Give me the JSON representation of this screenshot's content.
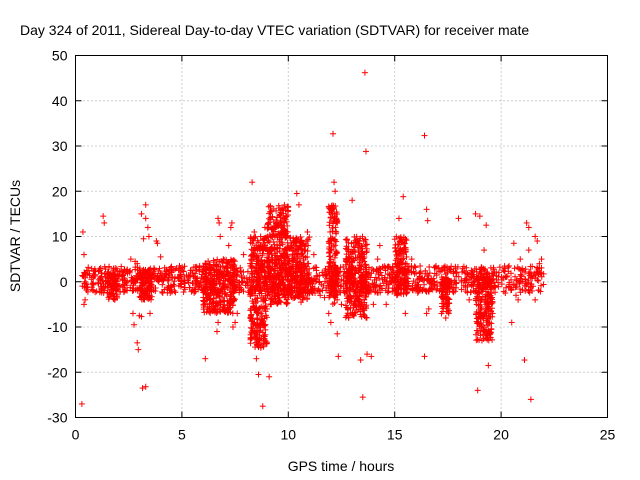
{
  "chart_data": {
    "type": "scatter",
    "title": "Day 324 of 2011, Sidereal Day-to-day VTEC variation (SDTVAR) for receiver mate",
    "xlabel": "GPS time / hours",
    "ylabel": "SDTVAR / TECUs",
    "xlim": [
      0,
      25
    ],
    "ylim": [
      -30,
      50
    ],
    "xticks": [
      0,
      5,
      10,
      15,
      20,
      25
    ],
    "yticks": [
      -30,
      -20,
      -10,
      0,
      10,
      20,
      30,
      40,
      50
    ],
    "grid": true,
    "marker": "plus",
    "color": "#ff0000",
    "series": [
      {
        "name": "SDTVAR",
        "band": {
          "x_start": 0.3,
          "x_end": 22.0,
          "y_low": -2.5,
          "y_high": 3.5
        },
        "bursts": [
          {
            "x_start": 1.5,
            "x_end": 2.0,
            "y_min": -4,
            "y_max": 2
          },
          {
            "x_start": 3.0,
            "x_end": 3.6,
            "y_min": -4,
            "y_max": 3
          },
          {
            "x_start": 6.0,
            "x_end": 7.5,
            "y_min": -7,
            "y_max": 5
          },
          {
            "x_start": 8.2,
            "x_end": 9.0,
            "y_min": -15,
            "y_max": 10
          },
          {
            "x_start": 9.0,
            "x_end": 10.0,
            "y_min": -5,
            "y_max": 17
          },
          {
            "x_start": 10.0,
            "x_end": 11.0,
            "y_min": -4,
            "y_max": 10
          },
          {
            "x_start": 11.9,
            "x_end": 12.3,
            "y_min": -5,
            "y_max": 17
          },
          {
            "x_start": 12.7,
            "x_end": 13.7,
            "y_min": -8,
            "y_max": 10
          },
          {
            "x_start": 15.0,
            "x_end": 15.6,
            "y_min": -3,
            "y_max": 10
          },
          {
            "x_start": 17.2,
            "x_end": 17.6,
            "y_min": -7,
            "y_max": 1
          },
          {
            "x_start": 18.8,
            "x_end": 19.6,
            "y_min": -13,
            "y_max": 1
          }
        ],
        "outliers": [
          [
            0.3,
            -27
          ],
          [
            0.35,
            11
          ],
          [
            0.4,
            6
          ],
          [
            0.45,
            -4
          ],
          [
            0.4,
            -5
          ],
          [
            1.3,
            14.5
          ],
          [
            1.35,
            13
          ],
          [
            2.6,
            5
          ],
          [
            2.7,
            -7
          ],
          [
            2.75,
            -9.5
          ],
          [
            2.8,
            4.5
          ],
          [
            2.9,
            4
          ],
          [
            3.0,
            -7.5
          ],
          [
            3.1,
            -7.7
          ],
          [
            3.1,
            15
          ],
          [
            3.15,
            -23.5
          ],
          [
            3.3,
            -23.2
          ],
          [
            3.3,
            17
          ],
          [
            3.3,
            14
          ],
          [
            3.2,
            9.5
          ],
          [
            3.4,
            12
          ],
          [
            3.45,
            10
          ],
          [
            3.5,
            -7
          ],
          [
            2.9,
            -13.5
          ],
          [
            2.95,
            -15
          ],
          [
            3.8,
            9
          ],
          [
            3.85,
            8.5
          ],
          [
            4.0,
            5.5
          ],
          [
            6.1,
            -17
          ],
          [
            6.7,
            14
          ],
          [
            6.75,
            13
          ],
          [
            6.8,
            10
          ],
          [
            6.65,
            -11
          ],
          [
            6.7,
            -9
          ],
          [
            7.3,
            12
          ],
          [
            7.35,
            13
          ],
          [
            7.4,
            -10
          ],
          [
            7.5,
            -9
          ],
          [
            7.2,
            8
          ],
          [
            7.6,
            -7
          ],
          [
            7.9,
            6
          ],
          [
            8.3,
            22
          ],
          [
            8.5,
            -17
          ],
          [
            8.6,
            -20.5
          ],
          [
            8.8,
            -27.5
          ],
          [
            9.1,
            -21
          ],
          [
            8.9,
            12
          ],
          [
            9.5,
            13
          ],
          [
            9.4,
            12
          ],
          [
            8.4,
            11
          ],
          [
            8.7,
            10
          ],
          [
            9.0,
            -6
          ],
          [
            9.2,
            -5
          ],
          [
            10.4,
            19.5
          ],
          [
            10.5,
            17
          ],
          [
            10.6,
            -4.5
          ],
          [
            10.8,
            7
          ],
          [
            10.9,
            11
          ],
          [
            11.2,
            6
          ],
          [
            11.5,
            -3
          ],
          [
            11.7,
            -3.5
          ],
          [
            11.9,
            -7
          ],
          [
            12.0,
            -9
          ],
          [
            12.1,
            32.7
          ],
          [
            12.15,
            22
          ],
          [
            12.2,
            20
          ],
          [
            12.3,
            -11.5
          ],
          [
            12.35,
            -16.5
          ],
          [
            12.5,
            -5
          ],
          [
            12.8,
            -6
          ],
          [
            13.0,
            18
          ],
          [
            13.3,
            7
          ],
          [
            13.4,
            -17.3
          ],
          [
            13.5,
            -25.5
          ],
          [
            13.6,
            46.2
          ],
          [
            13.65,
            28.8
          ],
          [
            13.7,
            -16
          ],
          [
            13.9,
            -16.5
          ],
          [
            14.0,
            -5
          ],
          [
            14.2,
            5
          ],
          [
            14.3,
            8
          ],
          [
            14.6,
            -5
          ],
          [
            15.2,
            14
          ],
          [
            15.4,
            18.8
          ],
          [
            15.5,
            -7
          ],
          [
            15.8,
            5
          ],
          [
            16.4,
            32.3
          ],
          [
            16.5,
            16
          ],
          [
            16.55,
            13.5
          ],
          [
            16.4,
            -16.5
          ],
          [
            16.5,
            -7
          ],
          [
            16.6,
            -6
          ],
          [
            17.2,
            -7
          ],
          [
            17.4,
            -8
          ],
          [
            18.0,
            14
          ],
          [
            18.5,
            -4
          ],
          [
            18.8,
            15
          ],
          [
            18.9,
            -24
          ],
          [
            19.0,
            14.5
          ],
          [
            19.1,
            -13
          ],
          [
            19.3,
            12.5
          ],
          [
            19.2,
            7
          ],
          [
            19.4,
            -18.5
          ],
          [
            19.6,
            -7
          ],
          [
            19.9,
            2
          ],
          [
            20.5,
            -9
          ],
          [
            20.6,
            8.5
          ],
          [
            20.7,
            -3
          ],
          [
            20.8,
            -4
          ],
          [
            20.9,
            5
          ],
          [
            21.1,
            -17.3
          ],
          [
            21.2,
            13
          ],
          [
            21.3,
            12
          ],
          [
            21.4,
            -26
          ],
          [
            21.3,
            7
          ],
          [
            21.5,
            -1
          ],
          [
            21.6,
            10
          ],
          [
            21.7,
            9
          ],
          [
            21.8,
            4
          ],
          [
            21.9,
            5
          ],
          [
            21.6,
            -4
          ]
        ]
      }
    ]
  }
}
